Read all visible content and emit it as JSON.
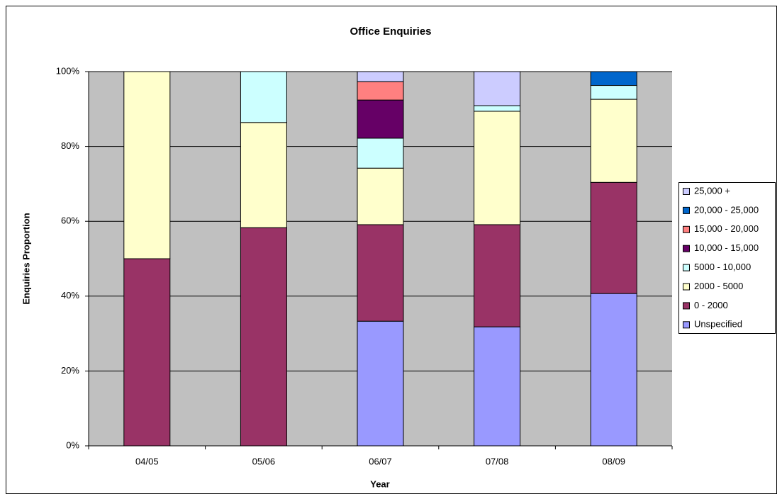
{
  "chart_data": {
    "type": "stacked_bar",
    "title": "Office Enquiries",
    "x_label": "Year",
    "y_label": "Enquiries Proportion",
    "categories": [
      "04/05",
      "05/06",
      "06/07",
      "07/08",
      "08/09"
    ],
    "series": [
      {
        "name": "Unspecified",
        "color": "#9999ff",
        "values": [
          0,
          0,
          33.3,
          31.8,
          40.7
        ]
      },
      {
        "name": "0 - 2000",
        "color": "#993366",
        "values": [
          50,
          58.3,
          25.8,
          27.3,
          29.7
        ]
      },
      {
        "name": "2000 - 5000",
        "color": "#ffffcc",
        "values": [
          50,
          28.1,
          15.1,
          30.3,
          22.2
        ]
      },
      {
        "name": "5000 - 10,000",
        "color": "#ccffff",
        "values": [
          0,
          13.6,
          8.0,
          1.5,
          3.7
        ]
      },
      {
        "name": "10,000 - 15,000",
        "color": "#660066",
        "values": [
          0,
          0,
          10.2,
          0,
          0
        ]
      },
      {
        "name": "15,000 - 20,000",
        "color": "#ff8080",
        "values": [
          0,
          0,
          4.9,
          0,
          0
        ]
      },
      {
        "name": "20,000 - 25,000",
        "color": "#0066cc",
        "values": [
          0,
          0,
          0,
          0,
          3.7
        ]
      },
      {
        "name": "25,000 +",
        "color": "#ccccff",
        "values": [
          0,
          0,
          2.7,
          9.1,
          0
        ]
      }
    ],
    "ylim": [
      0,
      100
    ],
    "yticks": [
      {
        "value": 0,
        "label": "0%"
      },
      {
        "value": 20,
        "label": "20%"
      },
      {
        "value": 40,
        "label": "40%"
      },
      {
        "value": 60,
        "label": "60%"
      },
      {
        "value": 80,
        "label": "80%"
      },
      {
        "value": 100,
        "label": "100%"
      }
    ],
    "grid": true,
    "legend": "right"
  }
}
